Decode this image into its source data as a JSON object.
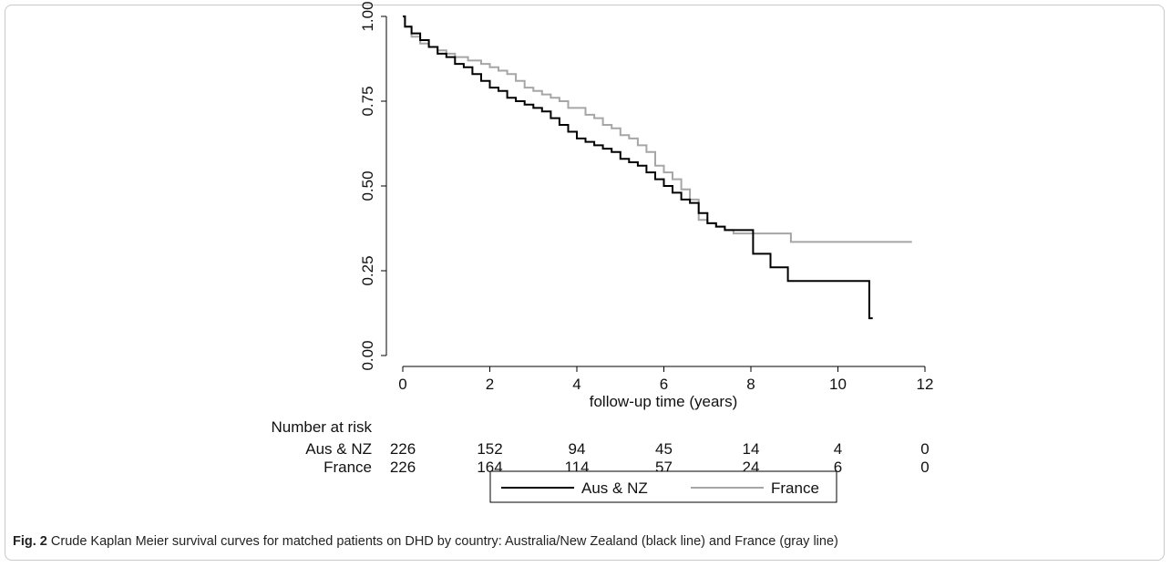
{
  "chart_data": {
    "type": "line",
    "xlabel": "follow-up time (years)",
    "ylabel": "",
    "xlim": [
      0,
      12
    ],
    "ylim": [
      0,
      1
    ],
    "x_ticks": [
      0,
      2,
      4,
      6,
      8,
      10,
      12
    ],
    "y_ticks": [
      "0.00",
      "0.25",
      "0.50",
      "0.75",
      "1.00"
    ],
    "grid": false,
    "legend_position": "bottom",
    "series": [
      {
        "name": "Aus & NZ",
        "color": "#000000",
        "points": [
          [
            0,
            1.0
          ],
          [
            0.05,
            0.97
          ],
          [
            0.2,
            0.95
          ],
          [
            0.4,
            0.93
          ],
          [
            0.6,
            0.91
          ],
          [
            0.8,
            0.89
          ],
          [
            1.0,
            0.88
          ],
          [
            1.2,
            0.86
          ],
          [
            1.4,
            0.85
          ],
          [
            1.6,
            0.83
          ],
          [
            1.8,
            0.81
          ],
          [
            2.0,
            0.79
          ],
          [
            2.2,
            0.78
          ],
          [
            2.4,
            0.76
          ],
          [
            2.6,
            0.75
          ],
          [
            2.8,
            0.74
          ],
          [
            3.0,
            0.73
          ],
          [
            3.2,
            0.72
          ],
          [
            3.4,
            0.7
          ],
          [
            3.6,
            0.68
          ],
          [
            3.8,
            0.66
          ],
          [
            4.0,
            0.64
          ],
          [
            4.2,
            0.63
          ],
          [
            4.4,
            0.62
          ],
          [
            4.6,
            0.61
          ],
          [
            4.8,
            0.6
          ],
          [
            5.0,
            0.58
          ],
          [
            5.2,
            0.57
          ],
          [
            5.4,
            0.56
          ],
          [
            5.6,
            0.54
          ],
          [
            5.8,
            0.52
          ],
          [
            6.0,
            0.5
          ],
          [
            6.2,
            0.48
          ],
          [
            6.4,
            0.46
          ],
          [
            6.6,
            0.45
          ],
          [
            6.8,
            0.42
          ],
          [
            7.0,
            0.39
          ],
          [
            7.2,
            0.38
          ],
          [
            7.4,
            0.37
          ],
          [
            7.6,
            0.37
          ],
          [
            8.0,
            0.37
          ],
          [
            8.05,
            0.3
          ],
          [
            8.4,
            0.3
          ],
          [
            8.45,
            0.26
          ],
          [
            8.8,
            0.26
          ],
          [
            8.85,
            0.22
          ],
          [
            10.7,
            0.22
          ],
          [
            10.72,
            0.11
          ],
          [
            10.8,
            0.11
          ]
        ]
      },
      {
        "name": "France",
        "color": "#a6a6a6",
        "points": [
          [
            0,
            1.0
          ],
          [
            0.05,
            0.97
          ],
          [
            0.2,
            0.94
          ],
          [
            0.4,
            0.92
          ],
          [
            0.6,
            0.91
          ],
          [
            0.8,
            0.9
          ],
          [
            1.0,
            0.89
          ],
          [
            1.2,
            0.88
          ],
          [
            1.5,
            0.87
          ],
          [
            1.8,
            0.86
          ],
          [
            2.0,
            0.85
          ],
          [
            2.2,
            0.84
          ],
          [
            2.4,
            0.83
          ],
          [
            2.6,
            0.81
          ],
          [
            2.8,
            0.79
          ],
          [
            3.0,
            0.78
          ],
          [
            3.2,
            0.77
          ],
          [
            3.4,
            0.76
          ],
          [
            3.6,
            0.75
          ],
          [
            3.8,
            0.73
          ],
          [
            4.0,
            0.73
          ],
          [
            4.2,
            0.71
          ],
          [
            4.4,
            0.7
          ],
          [
            4.6,
            0.68
          ],
          [
            4.8,
            0.67
          ],
          [
            5.0,
            0.65
          ],
          [
            5.2,
            0.64
          ],
          [
            5.4,
            0.62
          ],
          [
            5.6,
            0.6
          ],
          [
            5.8,
            0.56
          ],
          [
            6.0,
            0.54
          ],
          [
            6.2,
            0.52
          ],
          [
            6.4,
            0.49
          ],
          [
            6.6,
            0.46
          ],
          [
            6.8,
            0.4
          ],
          [
            7.0,
            0.39
          ],
          [
            7.2,
            0.38
          ],
          [
            7.4,
            0.37
          ],
          [
            7.6,
            0.36
          ],
          [
            8.0,
            0.36
          ],
          [
            8.5,
            0.36
          ],
          [
            8.9,
            0.36
          ],
          [
            8.92,
            0.335
          ],
          [
            11.7,
            0.335
          ]
        ]
      }
    ]
  },
  "risk_table": {
    "title": "Number at risk",
    "times": [
      0,
      2,
      4,
      6,
      8,
      10,
      12
    ],
    "rows": [
      {
        "label": "Aus & NZ",
        "values": [
          "226",
          "152",
          "94",
          "45",
          "14",
          "4",
          "0"
        ]
      },
      {
        "label": "France",
        "values": [
          "226",
          "164",
          "114",
          "57",
          "24",
          "6",
          "0"
        ]
      }
    ]
  },
  "caption": {
    "prefix": "Fig. 2",
    "text": " Crude Kaplan Meier survival curves for matched patients on DHD by country: Australia/New Zealand (black line) and France (gray line)"
  }
}
